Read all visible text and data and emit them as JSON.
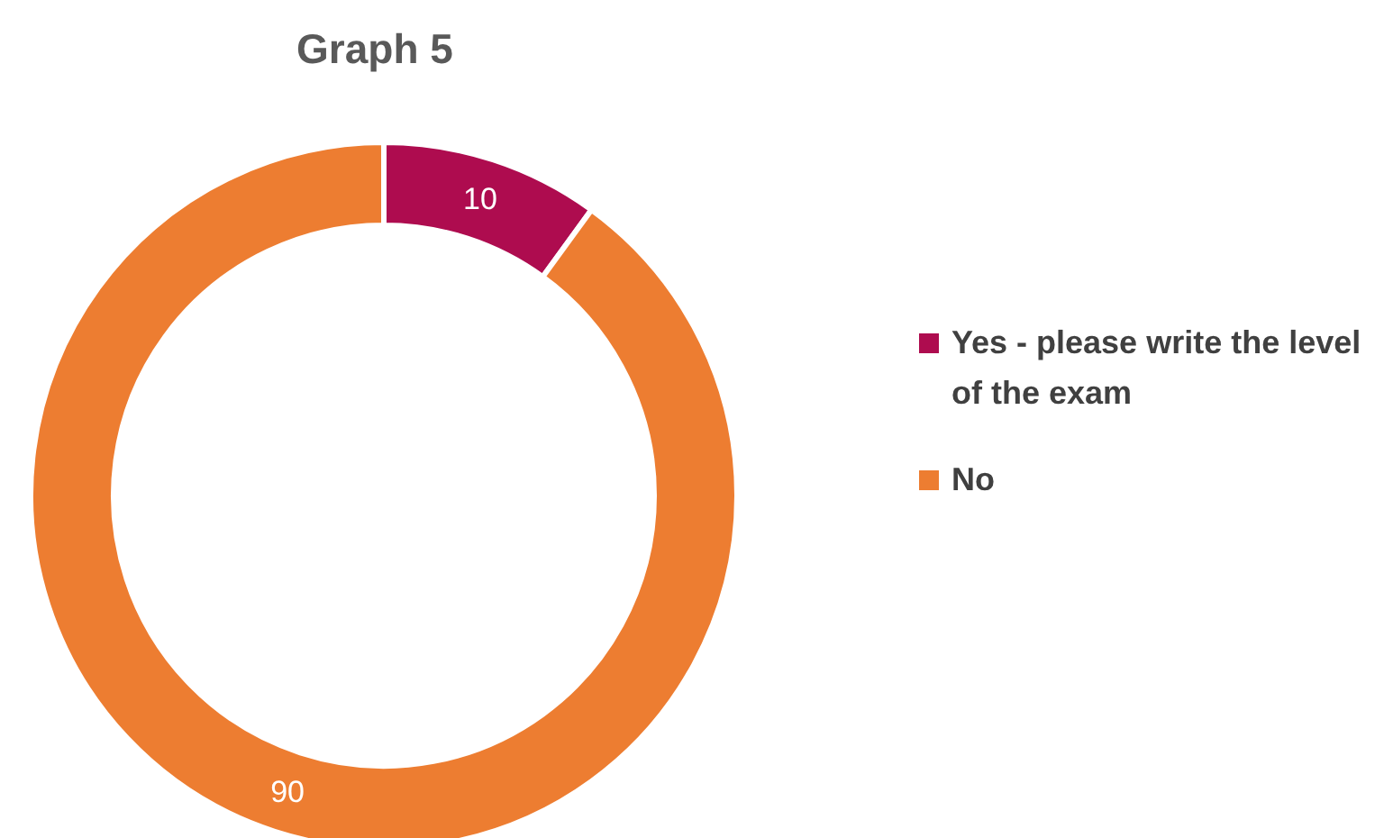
{
  "chart_data": {
    "type": "donut",
    "title": "Graph 5",
    "categories": [
      "Yes - please write the level of the exam",
      "No"
    ],
    "values": [
      10,
      90
    ],
    "colors": [
      "#ae0c4f",
      "#ed7d31"
    ],
    "data_labels": true,
    "legend": "right"
  }
}
